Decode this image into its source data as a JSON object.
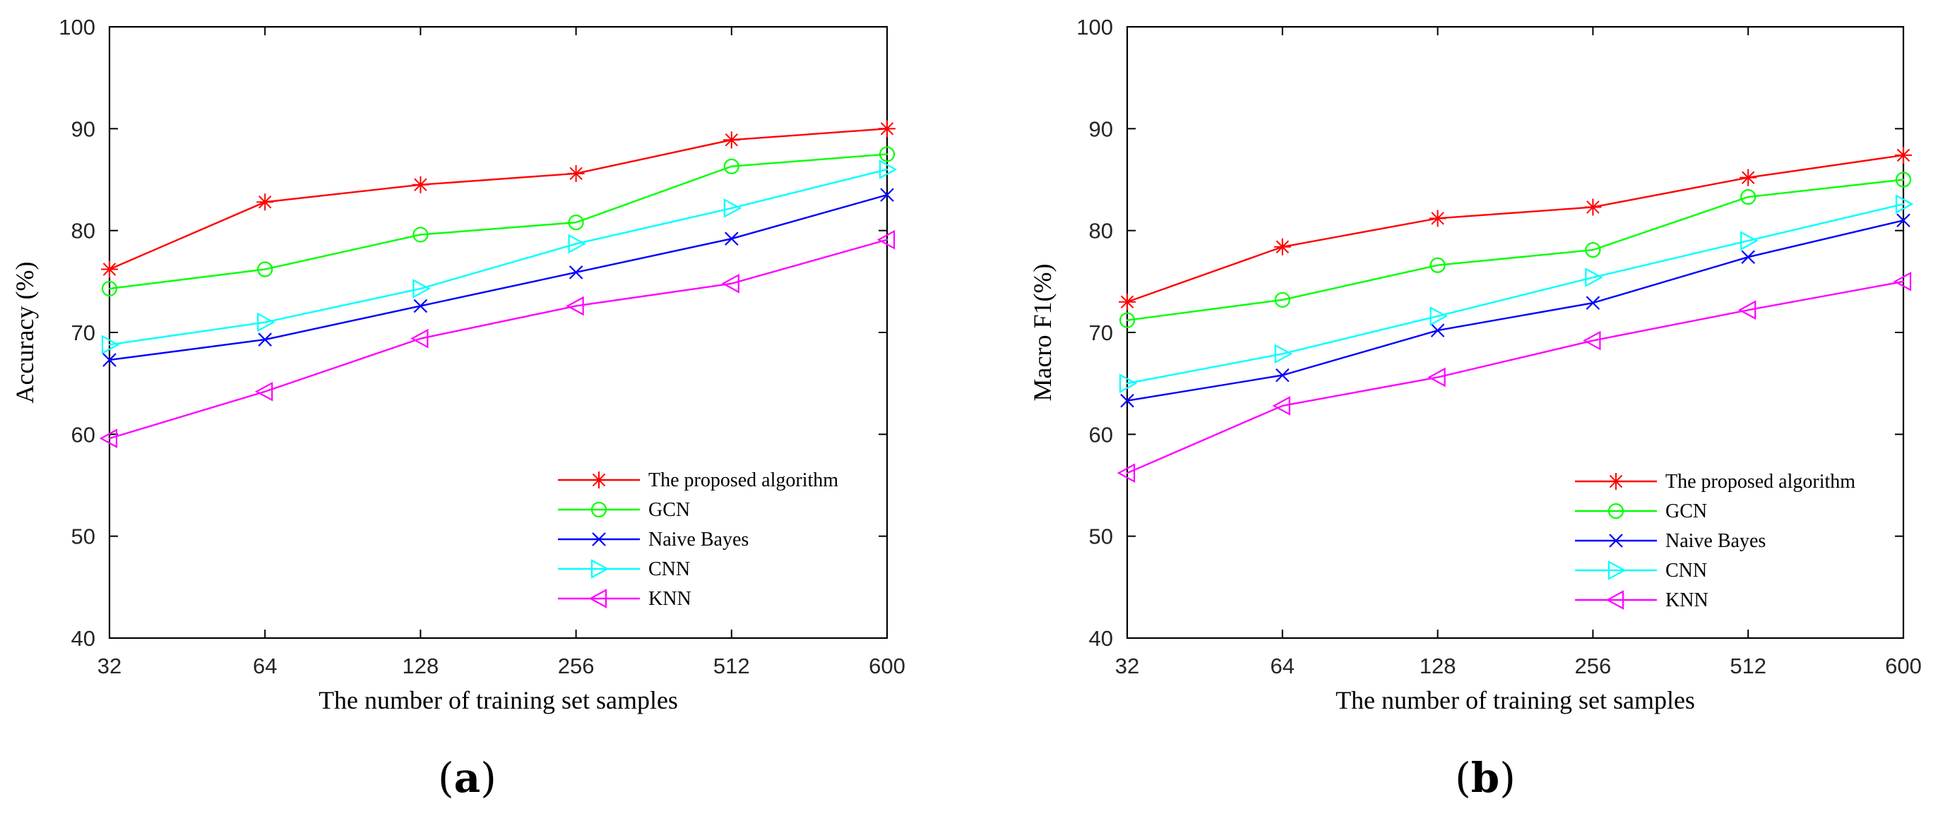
{
  "figure": {
    "panel_count": 2
  },
  "chart_data": [
    {
      "type": "line",
      "panel_label": "(a)",
      "panel_letter": "a",
      "xlabel": "The number of training set samples",
      "ylabel": "Accuracy (%)",
      "categories": [
        "32",
        "64",
        "128",
        "256",
        "512",
        "600"
      ],
      "ylim": [
        40,
        100
      ],
      "yticks": [
        40,
        50,
        60,
        70,
        80,
        90,
        100
      ],
      "grid": false,
      "legend_position": "bottom-right",
      "series": [
        {
          "name": "The proposed algorithm",
          "color": "#ff0000",
          "marker": "star",
          "values": [
            76.2,
            82.8,
            84.5,
            85.6,
            88.9,
            90.0
          ]
        },
        {
          "name": "GCN",
          "color": "#00ff00",
          "marker": "circle",
          "values": [
            74.3,
            76.2,
            79.6,
            80.8,
            86.3,
            87.5
          ]
        },
        {
          "name": "Naive Bayes",
          "color": "#0000ff",
          "marker": "x",
          "values": [
            67.3,
            69.3,
            72.6,
            75.9,
            79.2,
            83.5
          ]
        },
        {
          "name": "CNN",
          "color": "#00ffff",
          "marker": "triangle-right",
          "values": [
            68.8,
            71.0,
            74.3,
            78.7,
            82.2,
            86.0
          ]
        },
        {
          "name": "KNN",
          "color": "#ff00ff",
          "marker": "triangle-left",
          "values": [
            59.6,
            64.2,
            69.4,
            72.6,
            74.8,
            79.1
          ]
        }
      ]
    },
    {
      "type": "line",
      "panel_label": "(b)",
      "panel_letter": "b",
      "xlabel": "The number of training set samples",
      "ylabel": "Macro F1(%)",
      "categories": [
        "32",
        "64",
        "128",
        "256",
        "512",
        "600"
      ],
      "ylim": [
        40,
        100
      ],
      "yticks": [
        40,
        50,
        60,
        70,
        80,
        90,
        100
      ],
      "grid": false,
      "legend_position": "bottom-right",
      "series": [
        {
          "name": "The proposed algorithm",
          "color": "#ff0000",
          "marker": "star",
          "values": [
            73.0,
            78.4,
            81.2,
            82.3,
            85.2,
            87.4
          ]
        },
        {
          "name": "GCN",
          "color": "#00ff00",
          "marker": "circle",
          "values": [
            71.2,
            73.2,
            76.6,
            78.1,
            83.3,
            85.0
          ]
        },
        {
          "name": "Naive Bayes",
          "color": "#0000ff",
          "marker": "x",
          "values": [
            63.3,
            65.8,
            70.2,
            72.9,
            77.4,
            81.0
          ]
        },
        {
          "name": "CNN",
          "color": "#00ffff",
          "marker": "triangle-right",
          "values": [
            65.0,
            67.9,
            71.6,
            75.4,
            79.0,
            82.6
          ]
        },
        {
          "name": "KNN",
          "color": "#ff00ff",
          "marker": "triangle-left",
          "values": [
            56.2,
            62.8,
            65.6,
            69.2,
            72.2,
            75.0
          ]
        }
      ]
    }
  ]
}
